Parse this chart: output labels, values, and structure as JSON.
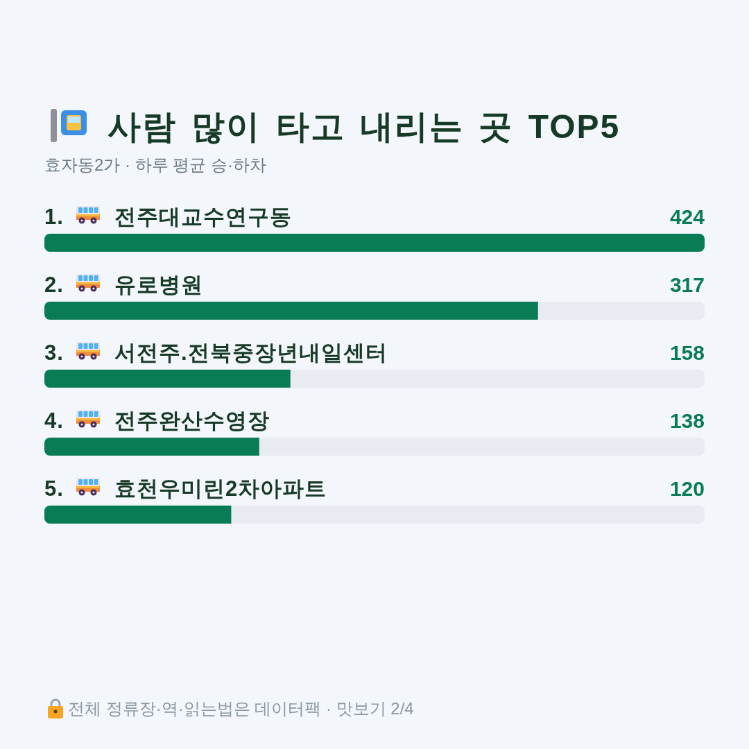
{
  "chart_data": {
    "type": "bar",
    "orientation": "horizontal",
    "title": "사람 많이 타고 내리는 곳 TOP5",
    "subtitle": "효자동2가 · 하루 평균 승·하차",
    "categories": [
      "1. 전주대교수연구동",
      "2. 유로병원",
      "3. 서전주.전북중장년내일센터",
      "4. 전주완산수영장",
      "5. 효천우미린2차아파트"
    ],
    "values": [
      424,
      317,
      158,
      138,
      120
    ],
    "color": "#0a7c55",
    "data_labels": true,
    "annotations": [
      "전체 정류장·역·읽는법은 데이터팩 · 맛보기 2/4"
    ]
  }
}
